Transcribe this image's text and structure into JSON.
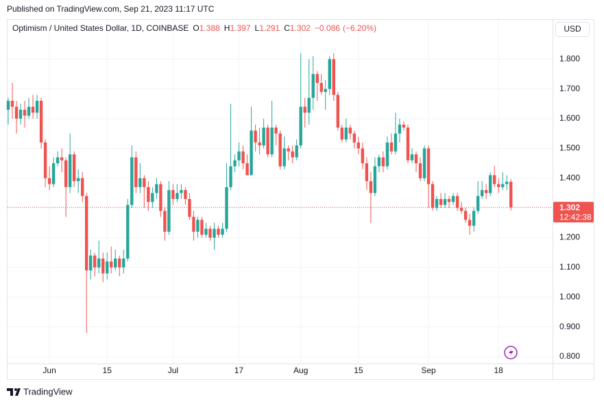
{
  "publisher": {
    "line": "Published on TradingView.com, Sep 21, 2023 11:17 UTC",
    "brand": "TradingView"
  },
  "chart_data": {
    "type": "candlestick",
    "title": "Optimism / United States Dollar, 1D, COINBASE",
    "ohlc_legend": {
      "labels": [
        "O",
        "H",
        "L",
        "C"
      ],
      "values": [
        1.388,
        1.397,
        1.291,
        1.302
      ],
      "change": {
        "value": -0.086,
        "label": "−0.086"
      },
      "change_pct": {
        "value": -6.2,
        "label": "(−6.20%)"
      }
    },
    "currency": "USD",
    "last_price": {
      "value": 1.302,
      "countdown": "12:42:38"
    },
    "up_color": "#26a69a",
    "down_color": "#ef5350",
    "categories": [
      null,
      null,
      null,
      null,
      null,
      null,
      null,
      null,
      null,
      null,
      "Jun",
      null,
      null,
      null,
      null,
      null,
      null,
      null,
      null,
      null,
      null,
      null,
      null,
      null,
      "15",
      null,
      null,
      null,
      null,
      null,
      null,
      null,
      null,
      null,
      null,
      null,
      null,
      null,
      null,
      null,
      "Jul",
      null,
      null,
      null,
      null,
      null,
      null,
      null,
      null,
      null,
      null,
      null,
      null,
      null,
      null,
      null,
      "17",
      null,
      null,
      null,
      null,
      null,
      null,
      null,
      null,
      null,
      null,
      null,
      null,
      null,
      null,
      "Aug",
      null,
      null,
      null,
      null,
      null,
      null,
      null,
      null,
      null,
      null,
      null,
      null,
      null,
      "15",
      null,
      null,
      null,
      null,
      null,
      null,
      null,
      null,
      null,
      null,
      null,
      null,
      null,
      null,
      null,
      null,
      "Sep",
      null,
      null,
      null,
      null,
      null,
      null,
      null,
      null,
      null,
      null,
      null,
      null,
      null,
      null,
      null,
      null,
      "18",
      null,
      null,
      null
    ],
    "series": [
      {
        "name": "OP/USD",
        "open": [
          1.63,
          1.66,
          1.64,
          1.6,
          1.63,
          1.61,
          1.64,
          1.62,
          1.66,
          1.52,
          1.4,
          1.38,
          1.45,
          1.47,
          1.46,
          1.37,
          1.48,
          1.39,
          1.4,
          1.34,
          1.09,
          1.14,
          1.1,
          1.13,
          1.08,
          1.12,
          1.1,
          1.13,
          1.1,
          1.13,
          1.31,
          1.47,
          1.37,
          1.4,
          1.37,
          1.32,
          1.35,
          1.38,
          1.29,
          1.22,
          1.36,
          1.33,
          1.35,
          1.36,
          1.33,
          1.27,
          1.22,
          1.26,
          1.21,
          1.23,
          1.2,
          1.23,
          1.21,
          1.23,
          1.37,
          1.44,
          1.46,
          1.49,
          1.45,
          1.41,
          1.56,
          1.52,
          1.51,
          1.57,
          1.48,
          1.57,
          1.55,
          1.44,
          1.5,
          1.49,
          1.47,
          1.51,
          1.64,
          1.62,
          1.67,
          1.75,
          1.72,
          1.69,
          1.7,
          1.8,
          1.68,
          1.57,
          1.53,
          1.57,
          1.55,
          1.52,
          1.5,
          1.45,
          1.39,
          1.35,
          1.44,
          1.47,
          1.44,
          1.52,
          1.49,
          1.55,
          1.58,
          1.57,
          1.46,
          1.48,
          1.45,
          1.4,
          1.5,
          1.38,
          1.3,
          1.33,
          1.31,
          1.33,
          1.32,
          1.34,
          1.3,
          1.29,
          1.26,
          1.24,
          1.29,
          1.34,
          1.36,
          1.35,
          1.41,
          1.38,
          1.37,
          1.38,
          1.388
        ],
        "high": [
          1.67,
          1.72,
          1.66,
          1.65,
          1.66,
          1.67,
          1.68,
          1.68,
          1.67,
          1.53,
          1.44,
          1.47,
          1.49,
          1.5,
          1.47,
          1.55,
          1.49,
          1.43,
          1.42,
          1.35,
          1.16,
          1.15,
          1.19,
          1.15,
          1.15,
          1.17,
          1.16,
          1.14,
          1.16,
          1.33,
          1.51,
          1.49,
          1.45,
          1.41,
          1.39,
          1.37,
          1.4,
          1.39,
          1.3,
          1.39,
          1.38,
          1.38,
          1.38,
          1.37,
          1.35,
          1.29,
          1.27,
          1.27,
          1.25,
          1.24,
          1.25,
          1.24,
          1.25,
          1.45,
          1.65,
          1.48,
          1.52,
          1.51,
          1.48,
          1.64,
          1.58,
          1.57,
          1.6,
          1.58,
          1.66,
          1.58,
          1.56,
          1.54,
          1.51,
          1.51,
          1.53,
          1.82,
          1.67,
          1.8,
          1.81,
          1.76,
          1.75,
          1.73,
          1.81,
          1.82,
          1.69,
          1.58,
          1.6,
          1.58,
          1.56,
          1.54,
          1.52,
          1.47,
          1.42,
          1.47,
          1.48,
          1.49,
          1.54,
          1.55,
          1.62,
          1.6,
          1.59,
          1.58,
          1.5,
          1.49,
          1.47,
          1.51,
          1.51,
          1.39,
          1.34,
          1.35,
          1.35,
          1.34,
          1.35,
          1.35,
          1.32,
          1.3,
          1.28,
          1.3,
          1.39,
          1.39,
          1.38,
          1.42,
          1.44,
          1.4,
          1.42,
          1.41,
          1.397
        ],
        "low": [
          1.58,
          1.6,
          1.55,
          1.58,
          1.57,
          1.6,
          1.6,
          1.6,
          1.5,
          1.37,
          1.36,
          1.37,
          1.44,
          1.42,
          1.27,
          1.35,
          1.37,
          1.35,
          1.32,
          0.88,
          1.06,
          1.07,
          1.08,
          1.05,
          1.06,
          1.08,
          1.09,
          1.07,
          1.08,
          1.12,
          1.3,
          1.35,
          1.35,
          1.3,
          1.29,
          1.3,
          1.33,
          1.27,
          1.19,
          1.21,
          1.31,
          1.32,
          1.33,
          1.31,
          1.26,
          1.19,
          1.2,
          1.2,
          1.2,
          1.19,
          1.16,
          1.2,
          1.2,
          1.22,
          1.36,
          1.42,
          1.44,
          1.43,
          1.41,
          1.41,
          1.49,
          1.48,
          1.5,
          1.47,
          1.47,
          1.51,
          1.43,
          1.43,
          1.46,
          1.45,
          1.46,
          1.5,
          1.57,
          1.58,
          1.63,
          1.66,
          1.68,
          1.63,
          1.68,
          1.66,
          1.56,
          1.52,
          1.52,
          1.53,
          1.5,
          1.48,
          1.43,
          1.36,
          1.25,
          1.34,
          1.42,
          1.42,
          1.43,
          1.48,
          1.48,
          1.52,
          1.56,
          1.45,
          1.45,
          1.42,
          1.39,
          1.39,
          1.3,
          1.29,
          1.29,
          1.3,
          1.3,
          1.3,
          1.31,
          1.29,
          1.28,
          1.25,
          1.21,
          1.22,
          1.28,
          1.33,
          1.33,
          1.34,
          1.37,
          1.35,
          1.36,
          1.36,
          1.291
        ],
        "close": [
          1.66,
          1.64,
          1.6,
          1.63,
          1.61,
          1.64,
          1.62,
          1.66,
          1.52,
          1.4,
          1.38,
          1.45,
          1.47,
          1.46,
          1.37,
          1.48,
          1.39,
          1.4,
          1.34,
          1.09,
          1.14,
          1.1,
          1.13,
          1.08,
          1.12,
          1.1,
          1.13,
          1.1,
          1.13,
          1.31,
          1.47,
          1.37,
          1.4,
          1.37,
          1.32,
          1.35,
          1.38,
          1.29,
          1.22,
          1.36,
          1.33,
          1.35,
          1.36,
          1.33,
          1.27,
          1.22,
          1.26,
          1.21,
          1.23,
          1.2,
          1.23,
          1.21,
          1.23,
          1.37,
          1.44,
          1.46,
          1.49,
          1.45,
          1.41,
          1.56,
          1.52,
          1.51,
          1.57,
          1.48,
          1.57,
          1.55,
          1.44,
          1.5,
          1.49,
          1.47,
          1.51,
          1.64,
          1.62,
          1.67,
          1.75,
          1.72,
          1.69,
          1.7,
          1.8,
          1.68,
          1.57,
          1.53,
          1.57,
          1.55,
          1.52,
          1.5,
          1.45,
          1.39,
          1.35,
          1.44,
          1.47,
          1.44,
          1.52,
          1.49,
          1.55,
          1.58,
          1.57,
          1.46,
          1.48,
          1.45,
          1.4,
          1.5,
          1.38,
          1.3,
          1.33,
          1.31,
          1.33,
          1.32,
          1.34,
          1.3,
          1.29,
          1.26,
          1.24,
          1.29,
          1.34,
          1.36,
          1.35,
          1.41,
          1.38,
          1.37,
          1.38,
          1.388,
          1.302
        ]
      }
    ],
    "ylim": [
      0.777,
      1.932
    ],
    "yticks": [
      {
        "value": 0.8,
        "label": "0.800"
      },
      {
        "value": 0.9,
        "label": "0.900"
      },
      {
        "value": 1.0,
        "label": "1.000"
      },
      {
        "value": 1.1,
        "label": "1.100"
      },
      {
        "value": 1.2,
        "label": "1.200"
      },
      {
        "value": 1.3,
        "label": "1.300"
      },
      {
        "value": 1.4,
        "label": "1.400"
      },
      {
        "value": 1.5,
        "label": "1.500"
      },
      {
        "value": 1.6,
        "label": "1.600"
      },
      {
        "value": 1.7,
        "label": "1.700"
      },
      {
        "value": 1.8,
        "label": "1.800"
      }
    ],
    "grid": true
  }
}
